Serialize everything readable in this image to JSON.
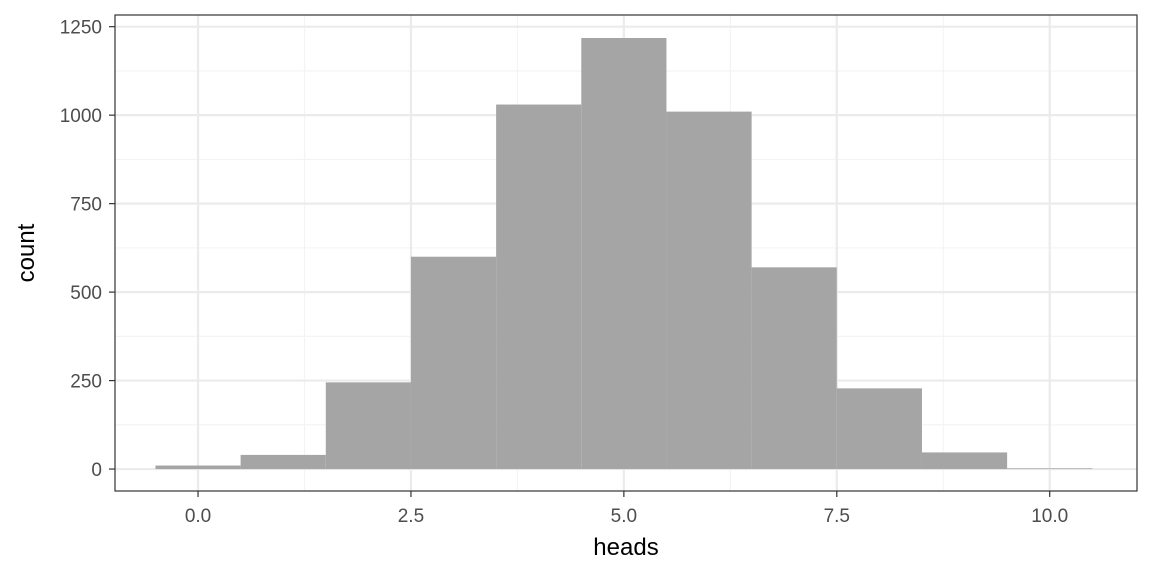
{
  "chart_data": {
    "type": "histogram",
    "title": "",
    "xlabel": "heads",
    "ylabel": "count",
    "xlim": [
      -0.975,
      11.025
    ],
    "ylim": [
      -62,
      1283
    ],
    "x_ticks": [
      0,
      2.5,
      5,
      7.5,
      10
    ],
    "x_tick_labels": [
      "0.0",
      "2.5",
      "5.0",
      "7.5",
      "10.0"
    ],
    "y_ticks": [
      0,
      250,
      500,
      750,
      1000,
      1250
    ],
    "y_tick_labels": [
      "0",
      "250",
      "500",
      "750",
      "1000",
      "1250"
    ],
    "bin_width": 1,
    "bins": [
      {
        "x": 0,
        "count": 10
      },
      {
        "x": 1,
        "count": 40
      },
      {
        "x": 2,
        "count": 245
      },
      {
        "x": 3,
        "count": 600
      },
      {
        "x": 4,
        "count": 1030
      },
      {
        "x": 5,
        "count": 1218
      },
      {
        "x": 6,
        "count": 1010
      },
      {
        "x": 7,
        "count": 570
      },
      {
        "x": 8,
        "count": 228
      },
      {
        "x": 9,
        "count": 47
      },
      {
        "x": 10,
        "count": 2
      }
    ],
    "grid": true,
    "colors": {
      "bar": "#a5a5a5",
      "panel_border": "#333333",
      "grid_major": "#ebebeb",
      "grid_minor": "#f3f3f3",
      "background": "#ffffff"
    }
  }
}
